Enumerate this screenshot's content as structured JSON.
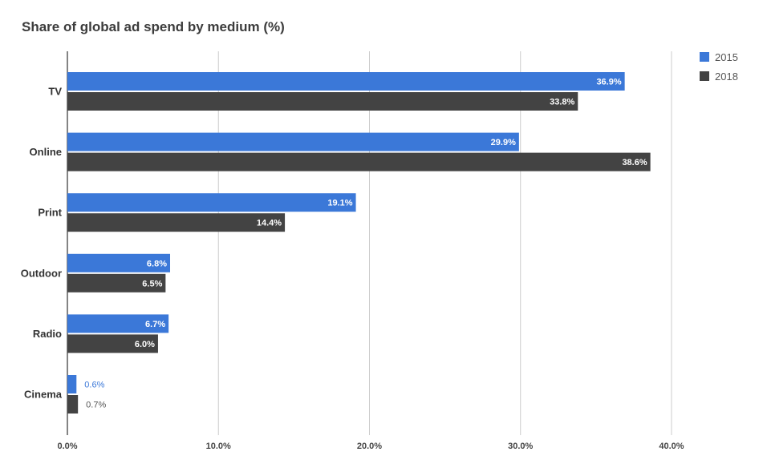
{
  "chart_data": {
    "type": "bar",
    "orientation": "horizontal",
    "title": "Share of global ad spend by medium (%)",
    "categories": [
      "TV",
      "Online",
      "Print",
      "Outdoor",
      "Radio",
      "Cinema"
    ],
    "series": [
      {
        "name": "2015",
        "color": "#3b78d8",
        "values": [
          36.9,
          29.9,
          19.1,
          6.8,
          6.7,
          0.6
        ],
        "labels": [
          "36.9%",
          "29.9%",
          "19.1%",
          "6.8%",
          "6.7%",
          "0.6%"
        ]
      },
      {
        "name": "2018",
        "color": "#434343",
        "values": [
          33.8,
          38.6,
          14.4,
          6.5,
          6.0,
          0.7
        ],
        "labels": [
          "33.8%",
          "38.6%",
          "14.4%",
          "6.5%",
          "6.0%",
          "0.7%"
        ]
      }
    ],
    "x_ticks": [
      "0.0%",
      "10.0%",
      "20.0%",
      "30.0%",
      "40.0%"
    ],
    "xlim": [
      0,
      40
    ],
    "grid": true,
    "legend_position": "top-right"
  }
}
